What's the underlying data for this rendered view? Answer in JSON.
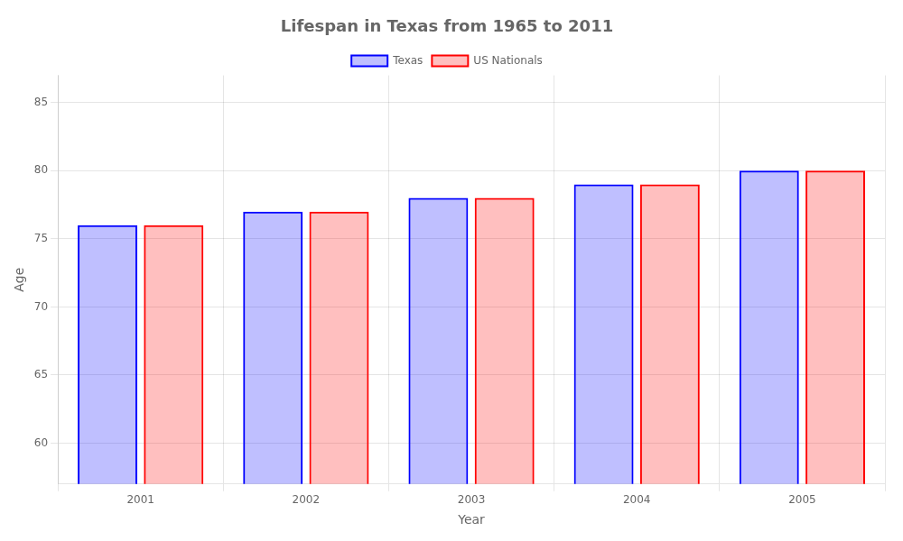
{
  "chart_data": {
    "type": "bar",
    "title": "Lifespan in Texas from 1965 to 2011",
    "xlabel": "Year",
    "ylabel": "Age",
    "categories": [
      "2001",
      "2002",
      "2003",
      "2004",
      "2005"
    ],
    "series": [
      {
        "name": "Texas",
        "color": "#0000ff",
        "values": [
          76,
          77,
          78,
          79,
          80
        ]
      },
      {
        "name": "US Nationals",
        "color": "#ff0000",
        "values": [
          76,
          77,
          78,
          79,
          80
        ]
      }
    ],
    "ylim": [
      57,
      87
    ],
    "yticks": [
      60,
      65,
      70,
      75,
      80,
      85
    ],
    "grid": true,
    "legend": "top"
  }
}
